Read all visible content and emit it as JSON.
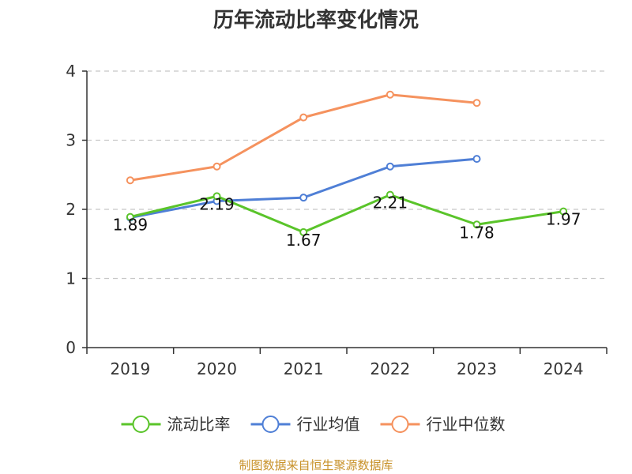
{
  "colors": {
    "current_ratio": "#5ac42a",
    "industry_avg": "#4f7fd6",
    "industry_median": "#f5925e",
    "grid": "#c8c8c8",
    "axis": "#333333",
    "source": "#c8922a"
  },
  "footer": {
    "source": "制图数据来自恒生聚源数据库"
  },
  "chart_data": {
    "type": "line",
    "title": "历年流动比率变化情况",
    "categories": [
      "2019",
      "2020",
      "2021",
      "2022",
      "2023",
      "2024"
    ],
    "ylim": [
      0,
      4
    ],
    "yticks": [
      "0",
      "1",
      "2",
      "3",
      "4"
    ],
    "grid": "horizontal-dashed",
    "legend_position": "bottom",
    "series": [
      {
        "name": "流动比率",
        "color_key": "current_ratio",
        "values": [
          1.89,
          2.19,
          1.67,
          2.21,
          1.78,
          1.97
        ],
        "labels": [
          "1.89",
          "2.19",
          "1.67",
          "2.21",
          "1.78",
          "1.97"
        ]
      },
      {
        "name": "行业均值",
        "color_key": "industry_avg",
        "values": [
          1.88,
          2.12,
          2.17,
          2.62,
          2.73,
          null
        ]
      },
      {
        "name": "行业中位数",
        "color_key": "industry_median",
        "values": [
          2.42,
          2.62,
          3.33,
          3.66,
          3.54,
          null
        ]
      }
    ]
  }
}
